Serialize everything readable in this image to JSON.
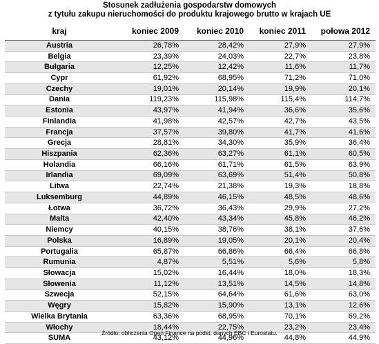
{
  "chart_data": {
    "type": "table",
    "title_line1": "Stosunek zadłużenia gospodarstw domowych",
    "title_line2": "z tytułu zakupu nieruchomości do produktu krajowego brutto w krajach UE",
    "columns": [
      "kraj",
      "koniec 2009",
      "koniec 2010",
      "koniec 2011",
      "połowa 2012"
    ],
    "rows": [
      {
        "kraj": "Austria",
        "v": [
          "26,78%",
          "28,42%",
          "27,9%",
          "27,9%"
        ]
      },
      {
        "kraj": "Belgia",
        "v": [
          "23,39%",
          "24,03%",
          "22,7%",
          "23,8%"
        ]
      },
      {
        "kraj": "Bułgaria",
        "v": [
          "12,25%",
          "12,42%",
          "11,6%",
          "11,7%"
        ]
      },
      {
        "kraj": "Cypr",
        "v": [
          "61,92%",
          "68,95%",
          "71,2%",
          "71,0%"
        ]
      },
      {
        "kraj": "Czechy",
        "v": [
          "19,01%",
          "20,14%",
          "19,9%",
          "20,1%"
        ]
      },
      {
        "kraj": "Dania",
        "v": [
          "119,23%",
          "115,98%",
          "115,4%",
          "114,7%"
        ]
      },
      {
        "kraj": "Estonia",
        "v": [
          "43,97%",
          "41,94%",
          "36,6%",
          "35,6%"
        ]
      },
      {
        "kraj": "Finlandia",
        "v": [
          "41,98%",
          "42,57%",
          "42,7%",
          "43,5%"
        ]
      },
      {
        "kraj": "Francja",
        "v": [
          "37,57%",
          "39,80%",
          "41,7%",
          "41,6%"
        ]
      },
      {
        "kraj": "Grecja",
        "v": [
          "28,81%",
          "34,30%",
          "35,9%",
          "36,4%"
        ]
      },
      {
        "kraj": "Hiszpania",
        "v": [
          "62,36%",
          "63,27%",
          "61,1%",
          "60,5%"
        ]
      },
      {
        "kraj": "Holandia",
        "v": [
          "66,16%",
          "61,71%",
          "61,5%",
          "63,9%"
        ]
      },
      {
        "kraj": "Irlandia",
        "v": [
          "69,09%",
          "63,69%",
          "51,4%",
          "50,8%"
        ]
      },
      {
        "kraj": "Litwa",
        "v": [
          "22,74%",
          "21,38%",
          "19,3%",
          "18,8%"
        ]
      },
      {
        "kraj": "Luksemburg",
        "v": [
          "44,89%",
          "46,15%",
          "48,5%",
          "48,6%"
        ]
      },
      {
        "kraj": "Łotwa",
        "v": [
          "36,72%",
          "36,43%",
          "29,9%",
          "27,2%"
        ]
      },
      {
        "kraj": "Malta",
        "v": [
          "42,40%",
          "43,34%",
          "45,8%",
          "46,2%"
        ]
      },
      {
        "kraj": "Niemcy",
        "v": [
          "40,15%",
          "38,76%",
          "38,1%",
          "37,6%"
        ]
      },
      {
        "kraj": "Polska",
        "v": [
          "16,89%",
          "19,05%",
          "20,1%",
          "20,4%"
        ]
      },
      {
        "kraj": "Portugalia",
        "v": [
          "65,87%",
          "66,86%",
          "66,4%",
          "66,8%"
        ]
      },
      {
        "kraj": "Rumunia",
        "v": [
          "4,87%",
          "5,51%",
          "5,6%",
          "5,8%"
        ]
      },
      {
        "kraj": "Słowacja",
        "v": [
          "15,02%",
          "16,44%",
          "18,0%",
          "18,3%"
        ]
      },
      {
        "kraj": "Słowenia",
        "v": [
          "11,12%",
          "13,51%",
          "14,5%",
          "14,8%"
        ]
      },
      {
        "kraj": "Szwecja",
        "v": [
          "52,15%",
          "64,64%",
          "61,6%",
          "63,0%"
        ]
      },
      {
        "kraj": "Węgry",
        "v": [
          "15,82%",
          "15,90%",
          "13,1%",
          "12,6%"
        ]
      },
      {
        "kraj": "Wielka Brytania",
        "v": [
          "63,36%",
          "68,95%",
          "70,1%",
          "69,2%"
        ]
      },
      {
        "kraj": "Włochy",
        "v": [
          "18,44%",
          "22,75%",
          "23,2%",
          "23,4%"
        ]
      },
      {
        "kraj": "SUMA",
        "v": [
          "43,12%",
          "44,96%",
          "44,8%",
          "44,9%"
        ],
        "summary": true
      }
    ],
    "source": "Źródło: obliczenia Open Finance na podst. danych EBC i Eurostatu.",
    "colors": {
      "stripe": "#e6e6e6",
      "rule": "#6e6e6e"
    }
  }
}
